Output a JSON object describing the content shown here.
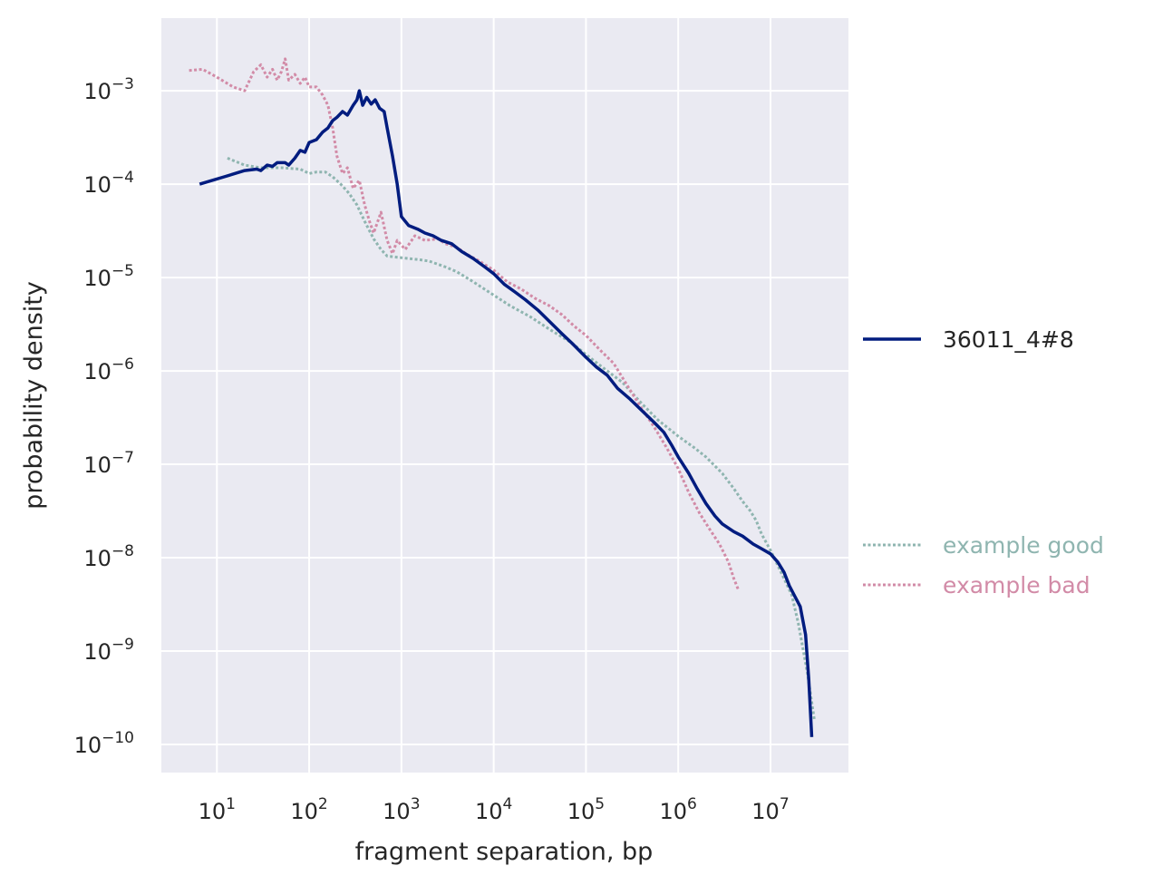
{
  "chart_data": {
    "type": "line",
    "title": "",
    "xlabel": "fragment separation, bp",
    "ylabel": "probability density",
    "xscale": "log",
    "yscale": "log",
    "xlim": [
      2.5,
      70000000
    ],
    "ylim": [
      5e-11,
      0.006
    ],
    "grid": true,
    "style": "seaborn-darkgrid",
    "x_ticks": [
      {
        "value": 10,
        "base": "10",
        "exp": "1"
      },
      {
        "value": 100,
        "base": "10",
        "exp": "2"
      },
      {
        "value": 1000,
        "base": "10",
        "exp": "3"
      },
      {
        "value": 10000,
        "base": "10",
        "exp": "4"
      },
      {
        "value": 100000,
        "base": "10",
        "exp": "5"
      },
      {
        "value": 1000000,
        "base": "10",
        "exp": "6"
      },
      {
        "value": 10000000,
        "base": "10",
        "exp": "7"
      }
    ],
    "y_ticks": [
      {
        "value": 0.001,
        "base": "10",
        "exp": "−3"
      },
      {
        "value": 0.0001,
        "base": "10",
        "exp": "−4"
      },
      {
        "value": 1e-05,
        "base": "10",
        "exp": "−5"
      },
      {
        "value": 1e-06,
        "base": "10",
        "exp": "−6"
      },
      {
        "value": 1e-07,
        "base": "10",
        "exp": "−7"
      },
      {
        "value": 1e-08,
        "base": "10",
        "exp": "−8"
      },
      {
        "value": 1e-09,
        "base": "10",
        "exp": "−9"
      },
      {
        "value": 1e-10,
        "base": "10",
        "exp": "−10"
      }
    ],
    "legends": [
      {
        "placement": "right-center",
        "entries": [
          "36011_4#8"
        ]
      },
      {
        "placement": "right-lower",
        "entries": [
          "example good",
          "example bad"
        ]
      }
    ],
    "series": [
      {
        "name": "36011_4#8",
        "color": "#001c7f",
        "style": "solid",
        "points": [
          [
            6.5,
            0.0001
          ],
          [
            12,
            0.00012
          ],
          [
            20,
            0.00014
          ],
          [
            27,
            0.000145
          ],
          [
            30,
            0.00014
          ],
          [
            35,
            0.00016
          ],
          [
            40,
            0.000155
          ],
          [
            45,
            0.00017
          ],
          [
            55,
            0.00017
          ],
          [
            60,
            0.00016
          ],
          [
            70,
            0.00019
          ],
          [
            80,
            0.00023
          ],
          [
            90,
            0.00022
          ],
          [
            100,
            0.00028
          ],
          [
            120,
            0.0003
          ],
          [
            140,
            0.00036
          ],
          [
            160,
            0.0004
          ],
          [
            180,
            0.00048
          ],
          [
            200,
            0.00052
          ],
          [
            230,
            0.0006
          ],
          [
            260,
            0.00055
          ],
          [
            300,
            0.0007
          ],
          [
            330,
            0.0008
          ],
          [
            350,
            0.001
          ],
          [
            380,
            0.0007
          ],
          [
            420,
            0.00085
          ],
          [
            470,
            0.00072
          ],
          [
            520,
            0.0008
          ],
          [
            580,
            0.00065
          ],
          [
            650,
            0.0006
          ],
          [
            700,
            0.0004
          ],
          [
            800,
            0.0002
          ],
          [
            900,
            0.0001
          ],
          [
            1000,
            4.5e-05
          ],
          [
            1200,
            3.6e-05
          ],
          [
            1500,
            3.3e-05
          ],
          [
            1800,
            3e-05
          ],
          [
            2200,
            2.8e-05
          ],
          [
            2700,
            2.5e-05
          ],
          [
            3500,
            2.3e-05
          ],
          [
            4500,
            1.9e-05
          ],
          [
            6000,
            1.6e-05
          ],
          [
            8000,
            1.3e-05
          ],
          [
            10000,
            1.1e-05
          ],
          [
            13000,
            8.5e-06
          ],
          [
            17000,
            7e-06
          ],
          [
            22000,
            5.8e-06
          ],
          [
            30000,
            4.5e-06
          ],
          [
            40000,
            3.4e-06
          ],
          [
            55000,
            2.5e-06
          ],
          [
            70000,
            2e-06
          ],
          [
            100000,
            1.4e-06
          ],
          [
            130000,
            1.1e-06
          ],
          [
            170000,
            9e-07
          ],
          [
            220000,
            6.5e-07
          ],
          [
            300000,
            5e-07
          ],
          [
            400000,
            3.8e-07
          ],
          [
            550000,
            2.8e-07
          ],
          [
            700000,
            2.2e-07
          ],
          [
            850000,
            1.6e-07
          ],
          [
            1000000,
            1.2e-07
          ],
          [
            1300000,
            8e-08
          ],
          [
            1600000,
            5.5e-08
          ],
          [
            2000000,
            3.8e-08
          ],
          [
            2500000,
            2.8e-08
          ],
          [
            3000000,
            2.3e-08
          ],
          [
            4000000,
            1.9e-08
          ],
          [
            5000000,
            1.7e-08
          ],
          [
            6500000,
            1.4e-08
          ],
          [
            8000000,
            1.25e-08
          ],
          [
            10000000,
            1.1e-08
          ],
          [
            12000000,
            9e-09
          ],
          [
            14000000,
            7e-09
          ],
          [
            16000000,
            5e-09
          ],
          [
            18000000,
            4e-09
          ],
          [
            21000000,
            3e-09
          ],
          [
            24000000,
            1.5e-09
          ],
          [
            26000000,
            5e-10
          ],
          [
            28000000,
            1.2e-10
          ]
        ]
      },
      {
        "name": "example good",
        "color": "#8fb5b0",
        "style": "dotted",
        "points": [
          [
            13,
            0.00019
          ],
          [
            20,
            0.00016
          ],
          [
            30,
            0.00015
          ],
          [
            50,
            0.00015
          ],
          [
            80,
            0.000145
          ],
          [
            100,
            0.00013
          ],
          [
            120,
            0.000135
          ],
          [
            150,
            0.000135
          ],
          [
            180,
            0.00012
          ],
          [
            220,
            0.0001
          ],
          [
            270,
            8e-05
          ],
          [
            330,
            6e-05
          ],
          [
            400,
            4e-05
          ],
          [
            500,
            2.6e-05
          ],
          [
            600,
            2e-05
          ],
          [
            700,
            1.7e-05
          ],
          [
            900,
            1.65e-05
          ],
          [
            1200,
            1.6e-05
          ],
          [
            1600,
            1.55e-05
          ],
          [
            2000,
            1.5e-05
          ],
          [
            3000,
            1.3e-05
          ],
          [
            4000,
            1.15e-05
          ],
          [
            6000,
            9e-06
          ],
          [
            10000,
            6.5e-06
          ],
          [
            15000,
            5e-06
          ],
          [
            25000,
            3.8e-06
          ],
          [
            40000,
            2.8e-06
          ],
          [
            70000,
            2e-06
          ],
          [
            100000,
            1.5e-06
          ],
          [
            150000,
            1.1e-06
          ],
          [
            250000,
            7.5e-07
          ],
          [
            400000,
            4.5e-07
          ],
          [
            600000,
            3e-07
          ],
          [
            1000000,
            2e-07
          ],
          [
            1500000,
            1.5e-07
          ],
          [
            2000000,
            1.2e-07
          ],
          [
            3000000,
            8e-08
          ],
          [
            4000000,
            5.5e-08
          ],
          [
            5000000,
            4e-08
          ],
          [
            6000000,
            3.2e-08
          ],
          [
            7000000,
            2.5e-08
          ],
          [
            8000000,
            1.8e-08
          ],
          [
            10000000,
            1.2e-08
          ],
          [
            13000000,
            7e-09
          ],
          [
            17000000,
            4e-09
          ],
          [
            20000000,
            2e-09
          ],
          [
            25000000,
            6e-10
          ],
          [
            30000000,
            1.8e-10
          ]
        ]
      },
      {
        "name": "example bad",
        "color": "#d28ba7",
        "style": "dotted",
        "points": [
          [
            5,
            0.00165
          ],
          [
            7,
            0.0017
          ],
          [
            10,
            0.0014
          ],
          [
            15,
            0.0011
          ],
          [
            20,
            0.001
          ],
          [
            25,
            0.0016
          ],
          [
            30,
            0.0019
          ],
          [
            35,
            0.0014
          ],
          [
            40,
            0.0017
          ],
          [
            45,
            0.0013
          ],
          [
            50,
            0.0016
          ],
          [
            55,
            0.0022
          ],
          [
            60,
            0.0013
          ],
          [
            70,
            0.0015
          ],
          [
            80,
            0.0012
          ],
          [
            90,
            0.0014
          ],
          [
            100,
            0.0011
          ],
          [
            120,
            0.0011
          ],
          [
            140,
            0.0009
          ],
          [
            160,
            0.0007
          ],
          [
            180,
            0.0004
          ],
          [
            200,
            0.0002
          ],
          [
            230,
            0.00013
          ],
          [
            260,
            0.00015
          ],
          [
            300,
            9e-05
          ],
          [
            350,
            0.00011
          ],
          [
            400,
            6e-05
          ],
          [
            450,
            4e-05
          ],
          [
            500,
            3e-05
          ],
          [
            600,
            5e-05
          ],
          [
            700,
            2.5e-05
          ],
          [
            800,
            1.8e-05
          ],
          [
            900,
            2.5e-05
          ],
          [
            1100,
            2e-05
          ],
          [
            1400,
            2.8e-05
          ],
          [
            1800,
            2.5e-05
          ],
          [
            2500,
            2.6e-05
          ],
          [
            3000,
            2.3e-05
          ],
          [
            4000,
            2.1e-05
          ],
          [
            5000,
            1.8e-05
          ],
          [
            7000,
            1.5e-05
          ],
          [
            10000,
            1.2e-05
          ],
          [
            14000,
            9e-06
          ],
          [
            20000,
            7.5e-06
          ],
          [
            28000,
            6e-06
          ],
          [
            40000,
            5e-06
          ],
          [
            55000,
            4e-06
          ],
          [
            75000,
            3e-06
          ],
          [
            100000,
            2.4e-06
          ],
          [
            140000,
            1.7e-06
          ],
          [
            200000,
            1.2e-06
          ],
          [
            280000,
            7e-07
          ],
          [
            400000,
            4e-07
          ],
          [
            550000,
            2.5e-07
          ],
          [
            750000,
            1.5e-07
          ],
          [
            1000000,
            9e-08
          ],
          [
            1300000,
            5e-08
          ],
          [
            1700000,
            3e-08
          ],
          [
            2200000,
            2e-08
          ],
          [
            2800000,
            1.4e-08
          ],
          [
            3500000,
            9e-09
          ],
          [
            4000000,
            6e-09
          ],
          [
            4500000,
            4.5e-09
          ]
        ]
      }
    ]
  }
}
